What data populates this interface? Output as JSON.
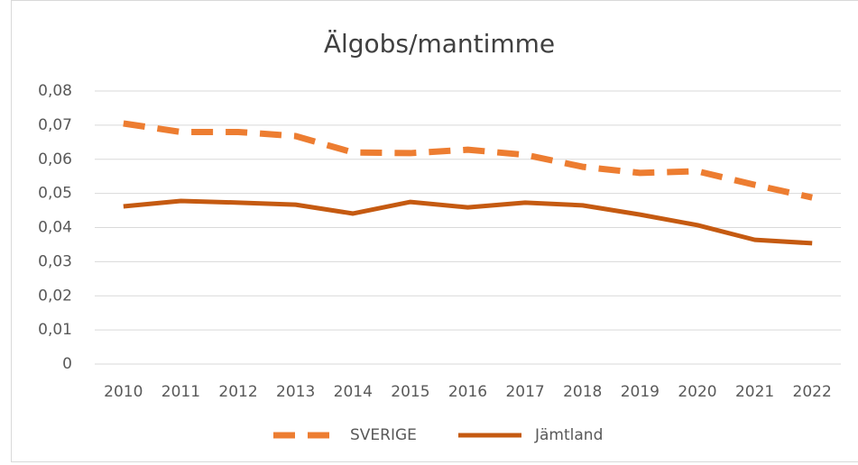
{
  "chart_data": {
    "type": "line",
    "title": "Älgobs/mantimme",
    "categories": [
      "2010",
      "2011",
      "2012",
      "2013",
      "2014",
      "2015",
      "2016",
      "2017",
      "2018",
      "2019",
      "2020",
      "2021",
      "2022"
    ],
    "series": [
      {
        "name": "SVERIGE",
        "color": "#ED7D31",
        "dash": true,
        "values": [
          0.0705,
          0.068,
          0.068,
          0.0668,
          0.062,
          0.0618,
          0.0628,
          0.0613,
          0.0578,
          0.056,
          0.0565,
          0.0525,
          0.0488
        ]
      },
      {
        "name": "Jämtland",
        "color": "#C55A11",
        "dash": false,
        "values": [
          0.0462,
          0.0478,
          0.0473,
          0.0467,
          0.0441,
          0.0475,
          0.0459,
          0.0473,
          0.0465,
          0.0438,
          0.0407,
          0.0364,
          0.0354
        ]
      }
    ],
    "ylim": [
      0,
      0.08
    ],
    "yticks": [
      0,
      {
        "value": 0.01,
        "label": "0,01"
      },
      {
        "value": 0.02,
        "label": "0,02"
      },
      {
        "value": 0.03,
        "label": "0,03"
      },
      {
        "value": 0.04,
        "label": "0,04"
      },
      {
        "value": 0.05,
        "label": "0,05"
      },
      {
        "value": 0.06,
        "label": "0,06"
      },
      {
        "value": 0.07,
        "label": "0,07"
      },
      {
        "value": 0.08,
        "label": "0,08"
      }
    ],
    "grid": true,
    "legend": "bottom"
  }
}
